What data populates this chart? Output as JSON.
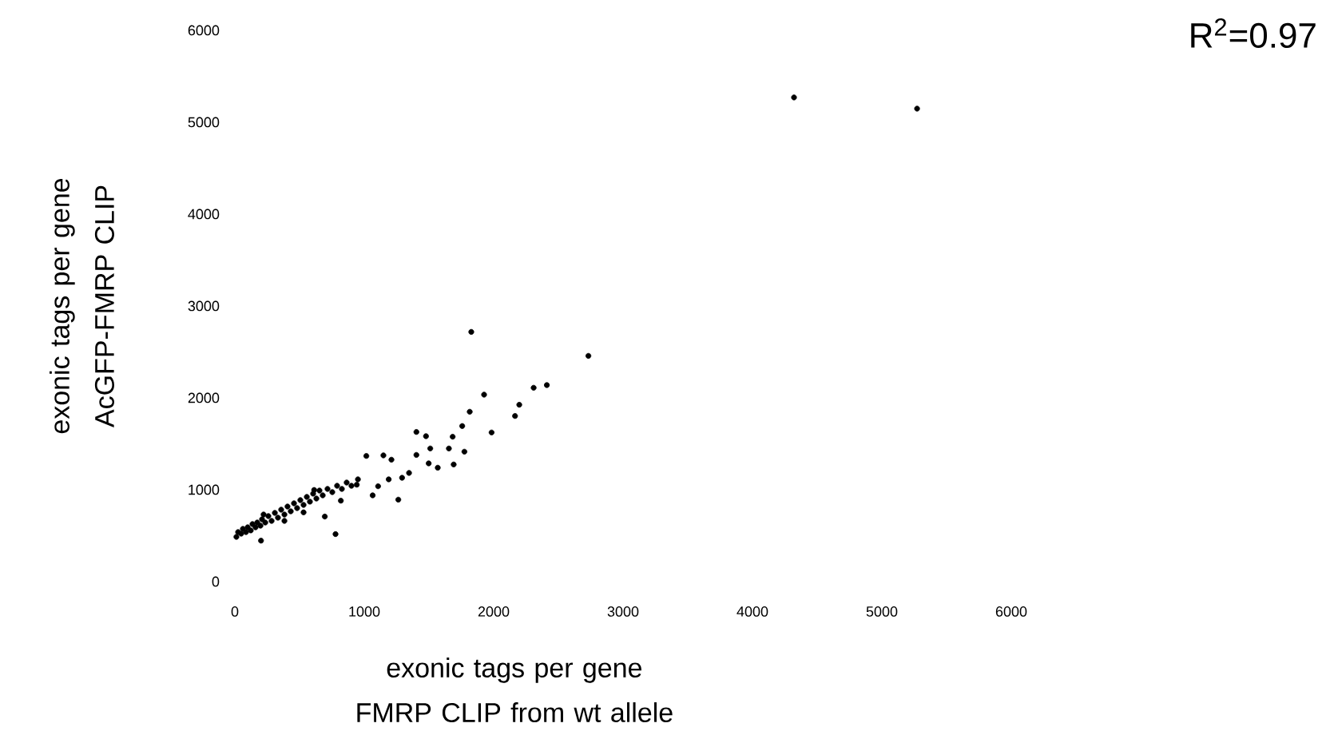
{
  "chart_data": {
    "type": "scatter",
    "xlabel": "exonic tags per gene FMRP CLIP from wt allele",
    "ylabel": "exonic tags per gene AcGFP-FMRP CLIP",
    "annotations": [
      "R$^{2}$=0.97"
    ],
    "xlim": [
      0,
      6000
    ],
    "ylim": [
      0,
      6000
    ],
    "xticks": [
      0,
      1000,
      2000,
      3000,
      4000,
      5000,
      6000
    ],
    "yticks": [
      0,
      1000,
      2000,
      3000,
      4000,
      5000,
      6000
    ],
    "series": [
      {
        "color": "#000000",
        "x": [
          12,
          25,
          49,
          62,
          86,
          99,
          123,
          136,
          160,
          173,
          198,
          210,
          235,
          259,
          284,
          309,
          333,
          358,
          383,
          407,
          432,
          457,
          481,
          506,
          531,
          556,
          580,
          605,
          630,
          654,
          679,
          716,
          753,
          790,
          827,
          864,
          901,
          951,
          383,
          222,
          202,
          531,
          613,
          695,
          778,
          819,
          942,
          1065,
          1107,
          1189,
          1263,
          1292,
          1346,
          1016,
          1148,
          1210,
          1403,
          1477,
          1683,
          1654,
          1774,
          1510,
          1403,
          1498,
          1568,
          1691,
          1757,
          1984,
          1815,
          1926,
          2165,
          2198,
          2309,
          2411,
          2732,
          1827,
          4321,
          5272
        ],
        "values": [
          487,
          539,
          522,
          574,
          539,
          591,
          557,
          626,
          591,
          643,
          609,
          678,
          643,
          713,
          661,
          748,
          696,
          783,
          730,
          817,
          765,
          852,
          800,
          887,
          835,
          922,
          870,
          957,
          904,
          991,
          939,
          1009,
          974,
          1043,
          1009,
          1078,
          1043,
          1113,
          661,
          730,
          446,
          754,
          997,
          708,
          517,
          881,
          1055,
          939,
          1038,
          1113,
          892,
          1130,
          1183,
          1368,
          1374,
          1327,
          1629,
          1583,
          1577,
          1449,
          1414,
          1449,
          1379,
          1287,
          1240,
          1275,
          1693,
          1623,
          1849,
          2035,
          1803,
          1925,
          2110,
          2139,
          2457,
          2718,
          5270,
          5148
        ]
      }
    ]
  }
}
